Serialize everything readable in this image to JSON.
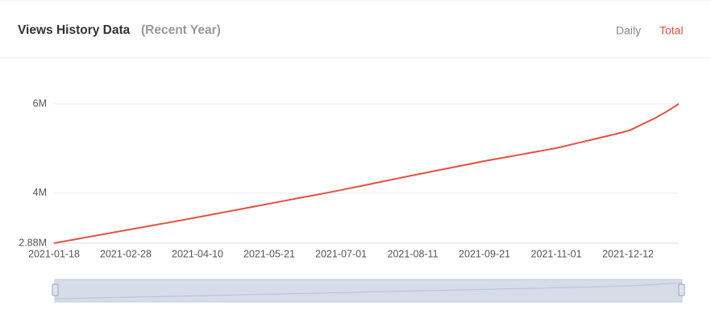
{
  "header": {
    "title": "Views History Data",
    "subtitle": "(Recent Year)",
    "buttons": [
      "Daily",
      "Total"
    ]
  },
  "chart_data": {
    "type": "line",
    "x": [
      "2021-01-18",
      "2021-01-25",
      "2021-02-01",
      "2021-02-08",
      "2021-02-15",
      "2021-02-22",
      "2021-03-01",
      "2021-03-08",
      "2021-03-15",
      "2021-03-22",
      "2021-03-29",
      "2021-04-05",
      "2021-04-12",
      "2021-04-19",
      "2021-04-26",
      "2021-05-03",
      "2021-05-10",
      "2021-05-17",
      "2021-05-24",
      "2021-05-31",
      "2021-06-07",
      "2021-06-14",
      "2021-06-21",
      "2021-06-28",
      "2021-07-05",
      "2021-07-12",
      "2021-07-19",
      "2021-07-26",
      "2021-08-02",
      "2021-08-09",
      "2021-08-16",
      "2021-08-23",
      "2021-08-30",
      "2021-09-06",
      "2021-09-13",
      "2021-09-20",
      "2021-09-27",
      "2021-10-04",
      "2021-10-11",
      "2021-10-18",
      "2021-10-25",
      "2021-11-01",
      "2021-11-08",
      "2021-11-15",
      "2021-11-22",
      "2021-11-29",
      "2021-12-06",
      "2021-12-13",
      "2021-12-20",
      "2021-12-27",
      "2022-01-03",
      "2022-01-10"
    ],
    "series": [
      {
        "color": "#e4503e",
        "values": [
          2880000,
          2930000,
          2979000,
          3029000,
          3078000,
          3128000,
          3177000,
          3227000,
          3276000,
          3326000,
          3375000,
          3425000,
          3475000,
          3527000,
          3579000,
          3631000,
          3683000,
          3735000,
          3787000,
          3839000,
          3891000,
          3943000,
          3995000,
          4047000,
          4102000,
          4158000,
          4215000,
          4271000,
          4328000,
          4384000,
          4439000,
          4494000,
          4548000,
          4603000,
          4657000,
          4712000,
          4762000,
          4812000,
          4861000,
          4911000,
          4960000,
          5010000,
          5075000,
          5140000,
          5205000,
          5270000,
          5334000,
          5408000,
          5541000,
          5673000,
          5825000,
          6000000
        ]
      }
    ],
    "xlim": [
      "2021-01-18",
      "2022-01-10"
    ],
    "xticks": [
      "2021-01-18",
      "2021-02-28",
      "2021-04-10",
      "2021-05-21",
      "2021-07-01",
      "2021-08-11",
      "2021-09-21",
      "2021-11-01",
      "2021-12-12"
    ],
    "ylim": [
      2880000,
      6000000
    ],
    "yticks": [
      {
        "value": 2880000,
        "label": "2.88M"
      },
      {
        "value": 4000000,
        "label": "4M"
      },
      {
        "value": 6000000,
        "label": "6M"
      }
    ],
    "grid": true
  }
}
